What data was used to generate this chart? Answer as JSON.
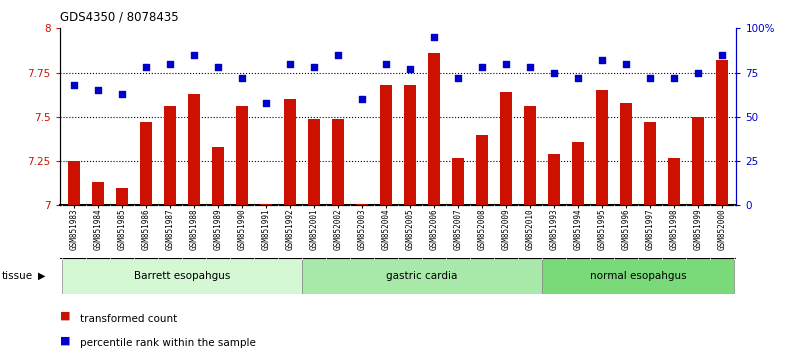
{
  "title": "GDS4350 / 8078435",
  "samples": [
    "GSM851983",
    "GSM851984",
    "GSM851985",
    "GSM851986",
    "GSM851987",
    "GSM851988",
    "GSM851989",
    "GSM851990",
    "GSM851991",
    "GSM851992",
    "GSM852001",
    "GSM852002",
    "GSM852003",
    "GSM852004",
    "GSM852005",
    "GSM852006",
    "GSM852007",
    "GSM852008",
    "GSM852009",
    "GSM852010",
    "GSM851993",
    "GSM851994",
    "GSM851995",
    "GSM851996",
    "GSM851997",
    "GSM851998",
    "GSM851999",
    "GSM852000"
  ],
  "bar_values": [
    7.25,
    7.13,
    7.1,
    7.47,
    7.56,
    7.63,
    7.33,
    7.56,
    7.01,
    7.6,
    7.49,
    7.49,
    7.01,
    7.68,
    7.68,
    7.86,
    7.27,
    7.4,
    7.64,
    7.56,
    7.29,
    7.36,
    7.65,
    7.58,
    7.47,
    7.27,
    7.5,
    7.82
  ],
  "percentile_values": [
    68,
    65,
    63,
    78,
    80,
    85,
    78,
    72,
    58,
    80,
    78,
    85,
    60,
    80,
    77,
    95,
    72,
    78,
    80,
    78,
    75,
    72,
    82,
    80,
    72,
    72,
    75,
    85
  ],
  "groups": [
    {
      "label": "Barrett esopahgus",
      "start": 0,
      "end": 10,
      "color": "#d4f7d4"
    },
    {
      "label": "gastric cardia",
      "start": 10,
      "end": 20,
      "color": "#a8e8a8"
    },
    {
      "label": "normal esopahgus",
      "start": 20,
      "end": 28,
      "color": "#7ada7a"
    }
  ],
  "bar_color": "#cc1100",
  "dot_color": "#0000cc",
  "ylim_left": [
    7.0,
    8.0
  ],
  "ylim_right": [
    0,
    100
  ],
  "yticks_left": [
    7.0,
    7.25,
    7.5,
    7.75,
    8.0
  ],
  "ytick_labels_left": [
    "7",
    "7.25",
    "7.5",
    "7.75",
    "8"
  ],
  "yticks_right": [
    0,
    25,
    50,
    75,
    100
  ],
  "ytick_labels_right": [
    "0",
    "25",
    "50",
    "75",
    "100%"
  ],
  "hlines": [
    7.25,
    7.5,
    7.75
  ],
  "bar_base": 7.0,
  "bg_color": "#f0f0f0"
}
